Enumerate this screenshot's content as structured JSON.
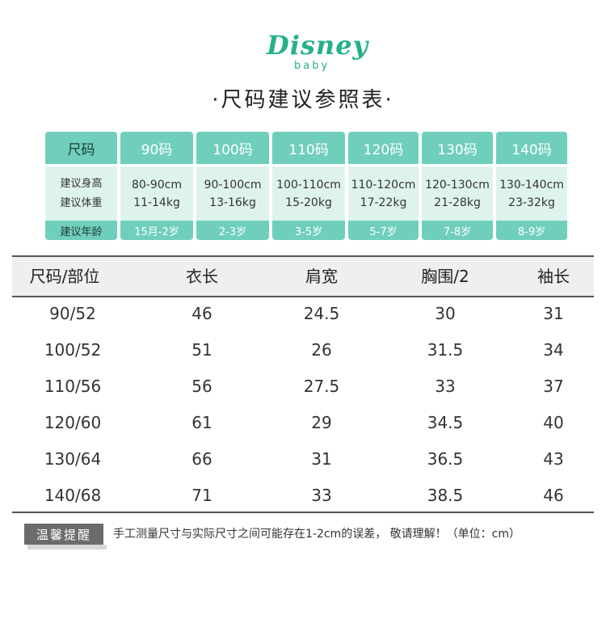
{
  "brand": {
    "logo_text": "Disney",
    "logo_sub": "baby"
  },
  "title": "·尺码建议参照表·",
  "recommend": {
    "row_labels": {
      "size": "尺码",
      "height": "建议身高",
      "weight": "建议体重",
      "age": "建议年龄"
    },
    "columns": [
      {
        "size": "90码",
        "height": "80-90cm",
        "weight": "11-14kg",
        "age": "15月-2岁"
      },
      {
        "size": "100码",
        "height": "90-100cm",
        "weight": "13-16kg",
        "age": "2-3岁"
      },
      {
        "size": "110码",
        "height": "100-110cm",
        "weight": "15-20kg",
        "age": "3-5岁"
      },
      {
        "size": "120码",
        "height": "110-120cm",
        "weight": "17-22kg",
        "age": "5-7岁"
      },
      {
        "size": "130码",
        "height": "120-130cm",
        "weight": "21-28kg",
        "age": "7-8岁"
      },
      {
        "size": "140码",
        "height": "130-140cm",
        "weight": "23-32kg",
        "age": "8-9岁"
      }
    ]
  },
  "measurements": {
    "headers": [
      "尺码/部位",
      "衣长",
      "肩宽",
      "胸围/2",
      "袖长"
    ],
    "rows": [
      [
        "90/52",
        "46",
        "24.5",
        "30",
        "31"
      ],
      [
        "100/52",
        "51",
        "26",
        "31.5",
        "34"
      ],
      [
        "110/56",
        "56",
        "27.5",
        "33",
        "37"
      ],
      [
        "120/60",
        "61",
        "29",
        "34.5",
        "40"
      ],
      [
        "130/64",
        "66",
        "31",
        "36.5",
        "43"
      ],
      [
        "140/68",
        "71",
        "33",
        "38.5",
        "46"
      ]
    ]
  },
  "tip": {
    "badge": "温馨提醒",
    "text": "手工测量尺寸与实际尺寸之间可能存在1-2cm的误差， 敬请理解！（单位：cm）"
  },
  "colors": {
    "accent": "#6fcfbc",
    "accent_light": "#dff3ee",
    "brand": "#27b089",
    "badge": "#6b6b6b"
  }
}
